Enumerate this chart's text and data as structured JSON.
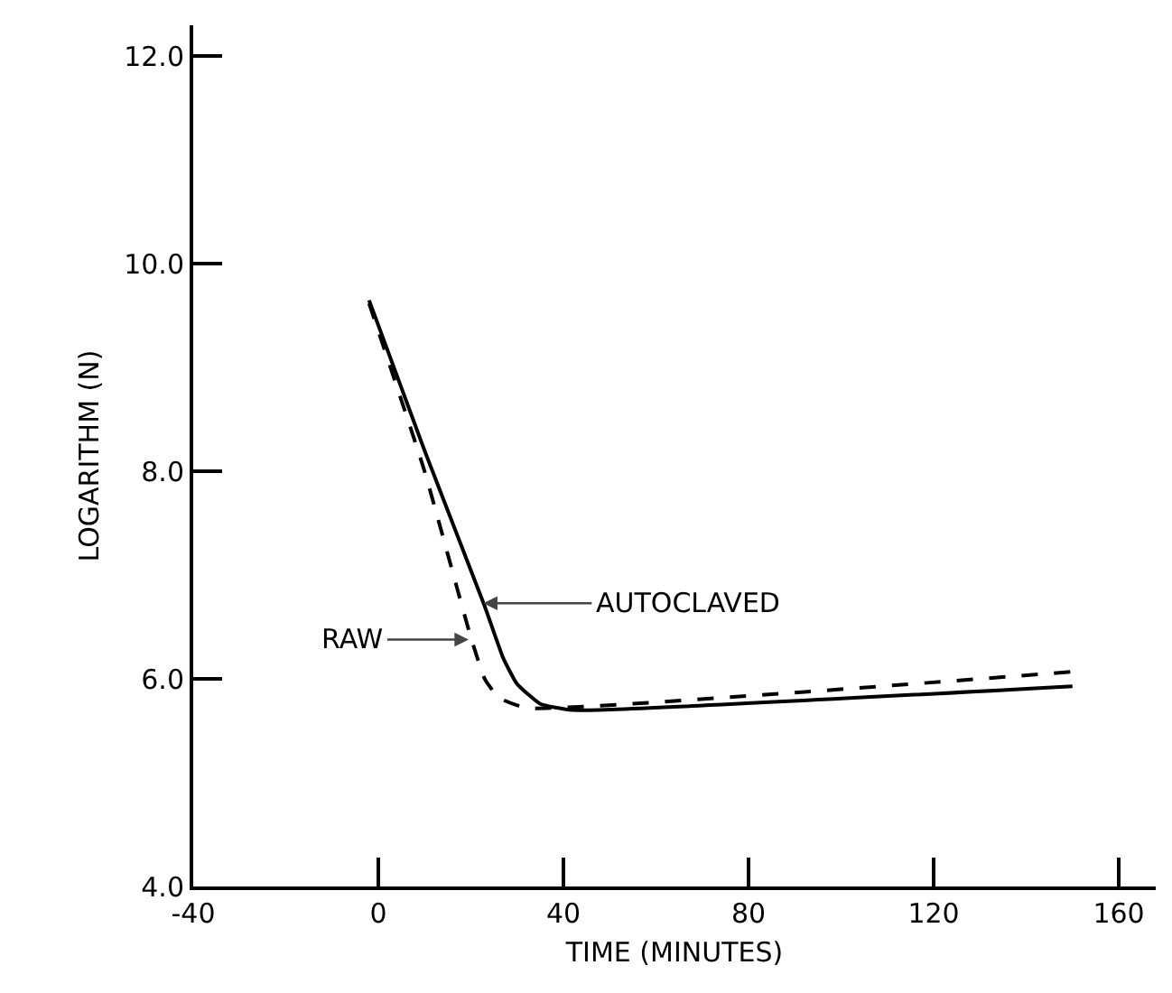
{
  "chart_data": {
    "type": "line",
    "xlabel": "TIME (MINUTES)",
    "ylabel": "LOGARITHM (N)",
    "series": [
      {
        "color": "#000000",
        "line_style": "solid",
        "x": [
          -2,
          10,
          23,
          27,
          30,
          35,
          42,
          150
        ],
        "values": [
          9.65,
          8.2,
          6.7,
          6.2,
          5.95,
          5.76,
          5.7,
          5.93
        ]
      },
      {
        "color": "#000000",
        "line_style": "dashed",
        "x": [
          -2,
          10,
          20,
          23,
          26,
          32,
          150
        ],
        "values": [
          9.62,
          8.0,
          6.4,
          6.0,
          5.82,
          5.72,
          6.07
        ]
      }
    ],
    "annotations": [
      {
        "text": "AUTOCLAVED",
        "x": 22.7,
        "y": 6.73
      },
      {
        "text": "RAW",
        "x": 19.5,
        "y": 6.38
      }
    ],
    "xlim": [
      -40,
      168
    ],
    "ylim": [
      4,
      12.3
    ],
    "xticks": [
      -40,
      0,
      40,
      80,
      120,
      160
    ],
    "yticks": [
      {
        "value": 4,
        "label": "4.0"
      },
      {
        "value": 6,
        "label": "6.0"
      },
      {
        "value": 8,
        "label": "8.0"
      },
      {
        "value": 10,
        "label": "10.0"
      },
      {
        "value": 12,
        "label": "12.0"
      }
    ],
    "grid": false,
    "marker": "none"
  }
}
